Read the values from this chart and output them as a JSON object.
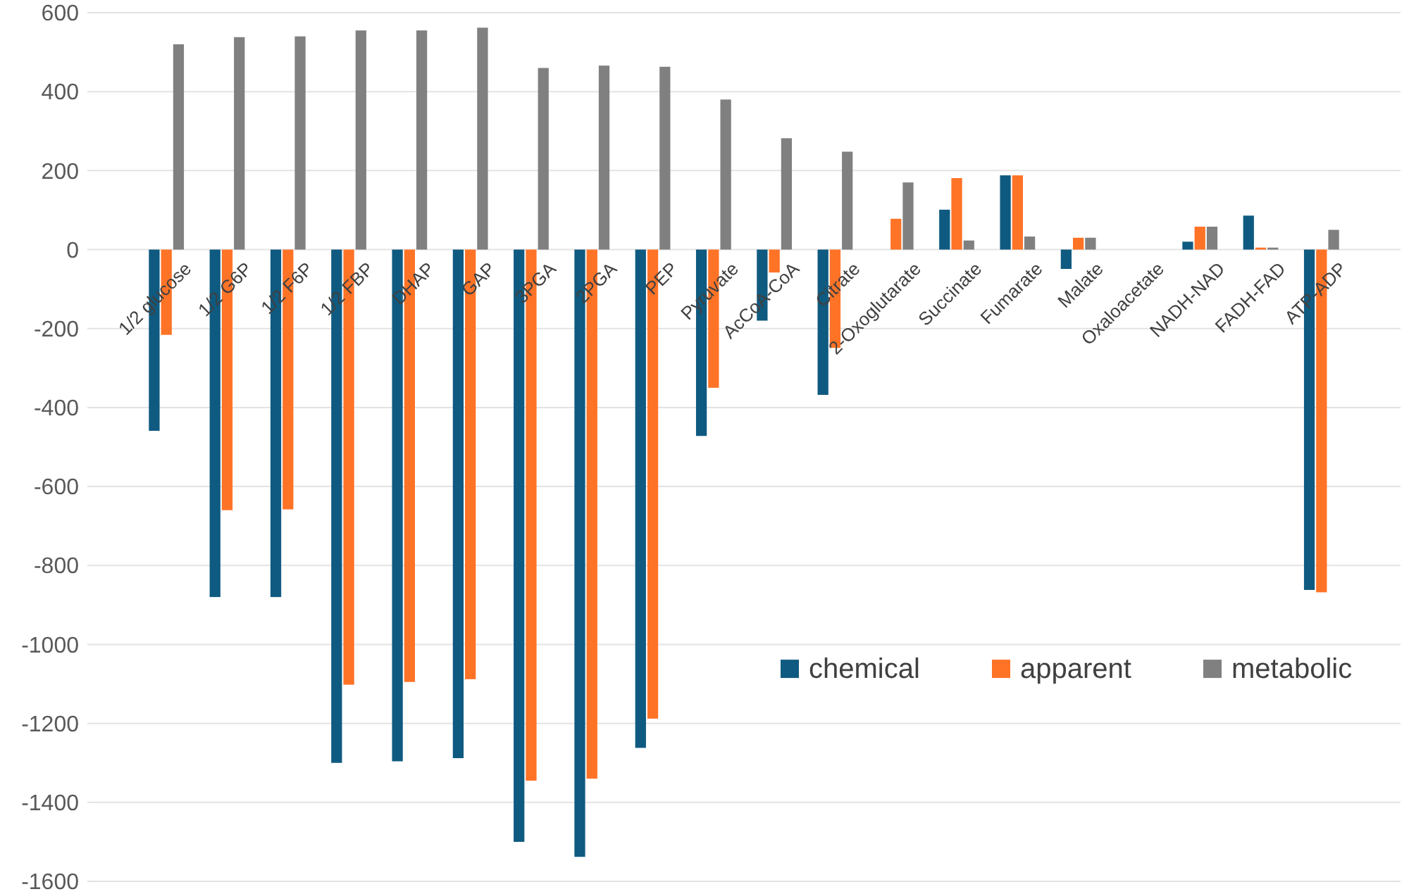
{
  "chart_data": {
    "type": "bar",
    "categories": [
      "1/2 glucose",
      "1/2 G6P",
      "1/2 F6P",
      "1/2 FBP",
      "DHAP",
      "GAP",
      "3PGA",
      "2PGA",
      "PEP",
      "Pyruvate",
      "AcCoA-CoA",
      "Citrate",
      "2-Oxoglutarate",
      "Succinate",
      "Fumarate",
      "Malate",
      "Oxaloacetate",
      "NADH-NAD",
      "FADH-FAD",
      "ATP-ADP"
    ],
    "series": [
      {
        "name": "chemical",
        "color": "#0f5a80",
        "values": [
          -459,
          -880,
          -880,
          -1300,
          -1296,
          -1288,
          -1500,
          -1538,
          -1262,
          -472,
          -180,
          -368,
          null,
          101,
          188,
          -49,
          null,
          20,
          86,
          -862
        ]
      },
      {
        "name": "apparent",
        "color": "#ff7327",
        "values": [
          -216,
          -660,
          -658,
          -1102,
          -1095,
          -1088,
          -1345,
          -1340,
          -1188,
          -350,
          -58,
          -249,
          78,
          181,
          188,
          30,
          null,
          58,
          5,
          -868
        ]
      },
      {
        "name": "metabolic",
        "color": "#808080",
        "values": [
          520,
          538,
          540,
          555,
          555,
          562,
          460,
          466,
          463,
          380,
          282,
          248,
          170,
          23,
          33,
          30,
          null,
          58,
          5,
          50
        ]
      }
    ],
    "ylim": [
      -1600,
      600
    ],
    "yticks": [
      -1600,
      -1400,
      -1200,
      -1000,
      -800,
      -600,
      -400,
      -200,
      0,
      200,
      400,
      600
    ],
    "grid": "y",
    "legend": "bottom right"
  }
}
